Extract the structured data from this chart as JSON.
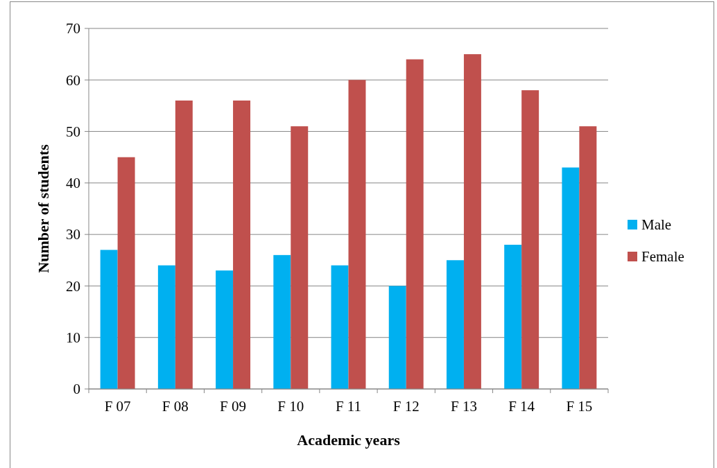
{
  "chart_data": {
    "type": "bar",
    "xlabel": "Academic years",
    "ylabel": "Number of students",
    "categories": [
      "F 07",
      "F 08",
      "F 09",
      "F 10",
      "F 11",
      "F 12",
      "F 13",
      "F 14",
      "F 15"
    ],
    "series": [
      {
        "name": "Male",
        "color": "#00b0f0",
        "values": [
          27,
          24,
          23,
          26,
          24,
          20,
          25,
          28,
          43
        ]
      },
      {
        "name": "Female",
        "color": "#c0504d",
        "values": [
          45,
          56,
          56,
          51,
          60,
          64,
          65,
          58,
          51
        ]
      }
    ],
    "ylim": [
      0,
      70
    ],
    "yticks": [
      0,
      10,
      20,
      30,
      40,
      50,
      60,
      70
    ],
    "grid": "y",
    "legend": "right"
  }
}
